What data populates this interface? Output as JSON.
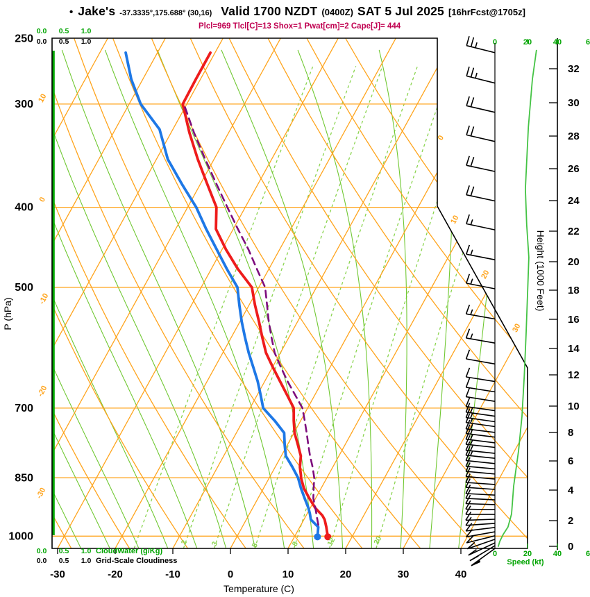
{
  "header": {
    "bullet": "•",
    "station": "Jake's",
    "coords": "-37.3335°,175.688° (30,16)",
    "valid": "Valid 1700 NZDT",
    "zulu": "(0400Z)",
    "date": "SAT 5 Jul 2025",
    "fcst": "[16hrFcst@1705z]",
    "params": "Plcl=969 Tlcl[C]=13 Shox=1 Pwat[cm]=2 Cape[J]= 444"
  },
  "chart_data": {
    "type": "skewt-logp-sounding",
    "pressure_axis": {
      "label": "P (hPa)",
      "ticks": [
        250,
        300,
        400,
        500,
        700,
        850,
        1000
      ]
    },
    "temperature_axis": {
      "label": "Temperature (C)",
      "ticks": [
        -30,
        -20,
        -10,
        0,
        10,
        20,
        30,
        40
      ]
    },
    "height_axis": {
      "label": "Height (1000 Feet)",
      "ticks": [
        0,
        2,
        4,
        6,
        8,
        10,
        12,
        14,
        16,
        18,
        20,
        22,
        24,
        26,
        28,
        30,
        32
      ]
    },
    "speed_axis": {
      "label": "Speed (kt)",
      "tick_labels": [
        "0",
        "20",
        "40",
        "6"
      ]
    },
    "cloud_axes": {
      "ticks": [
        "0.0",
        "0.5",
        "1.0"
      ],
      "cloudwater_label": "CloudWater (g/Kg)",
      "cloudiness_label": "Grid-Scale Cloudiness"
    },
    "mixing_ratio_lines": [
      1,
      2,
      3,
      5,
      8,
      12,
      20
    ],
    "mixing_ratio_labels": [
      2,
      3,
      5,
      8,
      12,
      20
    ],
    "dry_adiabat_labels": [
      10,
      0,
      -10,
      -20,
      -30
    ],
    "isotherm_edge_labels": [
      0,
      10,
      20,
      30
    ],
    "temperature_profile": [
      [
        1002,
        15.8
      ],
      [
        975,
        14.6
      ],
      [
        955,
        13.6
      ],
      [
        944,
        12.8
      ],
      [
        925,
        10.9
      ],
      [
        900,
        8.9
      ],
      [
        875,
        7.0
      ],
      [
        850,
        5.5
      ],
      [
        845,
        5.3
      ],
      [
        825,
        4.3
      ],
      [
        800,
        3.4
      ],
      [
        775,
        1.8
      ],
      [
        750,
        0.1
      ],
      [
        725,
        -1.2
      ],
      [
        700,
        -2.4
      ],
      [
        675,
        -4.8
      ],
      [
        650,
        -7.3
      ],
      [
        625,
        -9.9
      ],
      [
        600,
        -12.5
      ],
      [
        575,
        -14.6
      ],
      [
        550,
        -16.7
      ],
      [
        525,
        -19.0
      ],
      [
        500,
        -21.2
      ],
      [
        475,
        -25.4
      ],
      [
        450,
        -29.3
      ],
      [
        425,
        -33.0
      ],
      [
        400,
        -35.0
      ],
      [
        375,
        -38.8
      ],
      [
        350,
        -42.8
      ],
      [
        325,
        -46.8
      ],
      [
        300,
        -50.7
      ],
      [
        280,
        -50.8
      ],
      [
        260,
        -50.8
      ]
    ],
    "dewpoint_profile": [
      [
        1002,
        14.0
      ],
      [
        975,
        13.2
      ],
      [
        955,
        11.2
      ],
      [
        940,
        10.5
      ],
      [
        925,
        9.7
      ],
      [
        900,
        8.1
      ],
      [
        875,
        6.5
      ],
      [
        850,
        5.0
      ],
      [
        825,
        3.0
      ],
      [
        800,
        0.8
      ],
      [
        775,
        -0.5
      ],
      [
        750,
        -1.7
      ],
      [
        725,
        -4.5
      ],
      [
        700,
        -7.7
      ],
      [
        675,
        -9.4
      ],
      [
        650,
        -11.2
      ],
      [
        625,
        -13.3
      ],
      [
        600,
        -15.5
      ],
      [
        575,
        -17.6
      ],
      [
        550,
        -19.7
      ],
      [
        525,
        -21.7
      ],
      [
        500,
        -23.7
      ],
      [
        475,
        -27.3
      ],
      [
        450,
        -30.9
      ],
      [
        425,
        -34.7
      ],
      [
        400,
        -38.5
      ],
      [
        375,
        -43.2
      ],
      [
        350,
        -48.0
      ],
      [
        322,
        -52.3
      ],
      [
        300,
        -58.0
      ],
      [
        280,
        -62.0
      ],
      [
        260,
        -65.5
      ]
    ],
    "parcel_profile": [
      [
        969,
        13.0
      ],
      [
        950,
        12.1
      ],
      [
        925,
        10.9
      ],
      [
        900,
        9.6
      ],
      [
        875,
        8.7
      ],
      [
        850,
        7.8
      ],
      [
        825,
        6.5
      ],
      [
        800,
        5.0
      ],
      [
        775,
        3.6
      ],
      [
        750,
        2.2
      ],
      [
        725,
        0.7
      ],
      [
        700,
        -0.9
      ],
      [
        675,
        -3.4
      ],
      [
        650,
        -6.0
      ],
      [
        625,
        -8.5
      ],
      [
        600,
        -11.0
      ],
      [
        575,
        -13.0
      ],
      [
        550,
        -15.0
      ],
      [
        525,
        -16.9
      ],
      [
        500,
        -18.9
      ],
      [
        475,
        -22.1
      ],
      [
        450,
        -25.4
      ],
      [
        425,
        -29.2
      ],
      [
        400,
        -33.1
      ],
      [
        375,
        -37.2
      ],
      [
        350,
        -41.5
      ],
      [
        325,
        -46.0
      ],
      [
        300,
        -50.5
      ]
    ],
    "surface_points": {
      "temperature": {
        "p": 1002,
        "t": 15.8
      },
      "dewpoint": {
        "p": 1002,
        "t": 14.0
      }
    },
    "wind_speed_profile": [
      [
        258,
        25.5
      ],
      [
        280,
        23
      ],
      [
        320,
        20.5
      ],
      [
        380,
        18.7
      ],
      [
        420,
        19.5
      ],
      [
        460,
        20.8
      ],
      [
        510,
        20
      ],
      [
        570,
        19.1
      ],
      [
        640,
        18
      ],
      [
        716,
        16.6
      ],
      [
        788,
        14.5
      ],
      [
        870,
        11.5
      ],
      [
        940,
        10.2
      ],
      [
        975,
        8
      ],
      [
        995,
        5.1
      ],
      [
        1015,
        3
      ],
      [
        1030,
        2
      ]
    ],
    "wind_barbs": [
      [
        260,
        25,
        -14
      ],
      [
        283,
        25,
        -14
      ],
      [
        307,
        22,
        -13
      ],
      [
        333,
        20,
        -13
      ],
      [
        362,
        20,
        -12
      ],
      [
        393,
        20,
        -12
      ],
      [
        426,
        18,
        -12
      ],
      [
        463,
        15,
        -11
      ],
      [
        502,
        15,
        -11
      ],
      [
        546,
        15,
        -10
      ],
      [
        584,
        15,
        -10
      ],
      [
        619,
        12,
        -10
      ],
      [
        650,
        12,
        -9
      ],
      [
        669,
        10,
        -9
      ],
      [
        687,
        10,
        -9
      ],
      [
        705,
        10,
        -8
      ],
      [
        716,
        15,
        -8
      ],
      [
        727,
        15,
        -8
      ],
      [
        737,
        15,
        -8
      ],
      [
        749,
        15,
        -7
      ],
      [
        759,
        15,
        -7
      ],
      [
        771,
        15,
        -7
      ],
      [
        781,
        15,
        -6
      ],
      [
        794,
        15,
        -6
      ],
      [
        805,
        15,
        -6
      ],
      [
        817,
        12,
        -6
      ],
      [
        829,
        12,
        -5
      ],
      [
        841,
        12,
        -5
      ],
      [
        853,
        12,
        -5
      ],
      [
        866,
        10,
        -4
      ],
      [
        878,
        10,
        -4
      ],
      [
        892,
        10,
        -3
      ],
      [
        904,
        10,
        -3
      ],
      [
        916,
        10,
        -2
      ],
      [
        929,
        10,
        -1
      ],
      [
        941,
        10,
        0
      ],
      [
        954,
        10,
        2
      ],
      [
        965,
        10,
        4
      ],
      [
        976,
        10,
        7
      ],
      [
        988,
        10,
        10
      ],
      [
        999,
        10,
        14
      ],
      [
        1009,
        10,
        19
      ],
      [
        1019,
        12,
        25
      ],
      [
        1027,
        12,
        31
      ],
      [
        1035,
        15,
        36
      ]
    ],
    "colors": {
      "isolines_orange": "#ffa41c",
      "moist_adiabat": "#70c832",
      "mixing_ratio": "#8ad44e",
      "temperature_curve": "#ee1c1c",
      "dewpoint_curve": "#1e78e6",
      "parcel_curve": "#7d0c7d",
      "speed_curve": "#44c344",
      "green_axis": "#00a400",
      "param_text": "#c00050"
    }
  }
}
